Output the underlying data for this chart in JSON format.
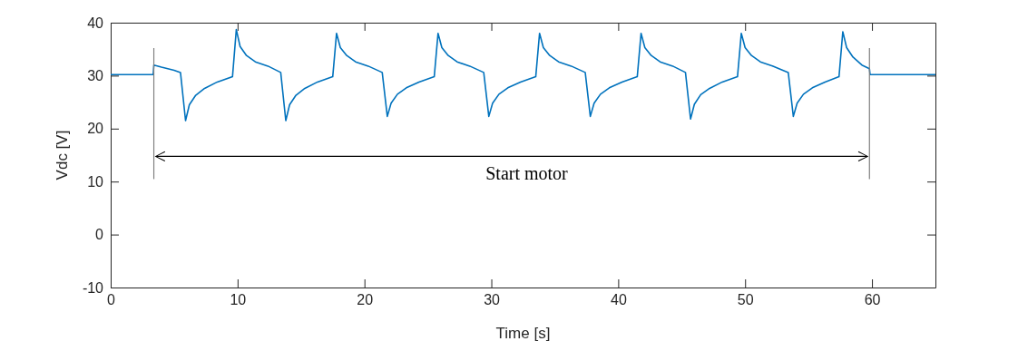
{
  "chart_data": {
    "type": "line",
    "xlabel": "Time [s]",
    "ylabel": "Vdc [V]",
    "xlim": [
      0,
      65
    ],
    "xticks": [
      0,
      10,
      20,
      30,
      40,
      50,
      60
    ],
    "ylim": [
      -10,
      40
    ],
    "yticks": [
      -10,
      0,
      10,
      20,
      30,
      40
    ],
    "grid": false,
    "series": [
      {
        "color": "#0072bd",
        "x": [
          0,
          3.35,
          3.4,
          4.0,
          5.0,
          5.5,
          5.9,
          6.2,
          6.7,
          7.4,
          8.4,
          9.6,
          9.9,
          10.2,
          10.7,
          11.4,
          12.4,
          13.4,
          13.8,
          14.1,
          14.6,
          15.3,
          16.3,
          17.5,
          17.8,
          18.1,
          18.6,
          19.3,
          20.3,
          21.4,
          21.8,
          22.1,
          22.6,
          23.3,
          24.3,
          25.5,
          25.8,
          26.1,
          26.6,
          27.3,
          28.3,
          29.4,
          29.8,
          30.1,
          30.6,
          31.3,
          32.3,
          33.5,
          33.8,
          34.1,
          34.6,
          35.3,
          36.3,
          37.4,
          37.8,
          38.1,
          38.6,
          39.3,
          40.3,
          41.5,
          41.8,
          42.1,
          42.6,
          43.3,
          44.3,
          45.3,
          45.7,
          46.0,
          46.5,
          47.2,
          48.2,
          49.4,
          49.7,
          50.0,
          50.5,
          51.2,
          52.2,
          53.4,
          53.8,
          54.1,
          54.6,
          55.3,
          56.3,
          57.4,
          57.7,
          58.0,
          58.5,
          59.2,
          59.8,
          59.85,
          65
        ],
        "values": [
          30.2,
          30.2,
          32.0,
          31.6,
          31.0,
          30.6,
          21.5,
          24.5,
          26.3,
          27.6,
          28.8,
          29.8,
          38.7,
          35.5,
          33.8,
          32.6,
          31.8,
          30.6,
          21.5,
          24.5,
          26.3,
          27.6,
          28.8,
          29.8,
          38.0,
          35.3,
          33.8,
          32.6,
          31.8,
          30.6,
          22.3,
          24.8,
          26.5,
          27.7,
          28.8,
          29.8,
          38.0,
          35.3,
          33.8,
          32.6,
          31.8,
          30.6,
          22.3,
          24.8,
          26.5,
          27.7,
          28.8,
          29.8,
          38.0,
          35.3,
          33.8,
          32.6,
          31.8,
          30.6,
          22.3,
          24.8,
          26.5,
          27.7,
          28.8,
          29.8,
          38.0,
          35.3,
          33.8,
          32.6,
          31.8,
          30.6,
          21.8,
          24.6,
          26.4,
          27.6,
          28.8,
          29.8,
          38.0,
          35.3,
          33.8,
          32.6,
          31.8,
          30.6,
          22.3,
          24.8,
          26.5,
          27.7,
          28.8,
          29.8,
          38.3,
          35.3,
          33.5,
          32.0,
          31.3,
          30.2,
          30.2
        ]
      }
    ],
    "ref_lines": [
      {
        "axis": "x",
        "value": 3.4,
        "color": "#808080"
      },
      {
        "axis": "x",
        "value": 59.8,
        "color": "#808080"
      }
    ],
    "annotations": [
      "Start motor"
    ]
  }
}
